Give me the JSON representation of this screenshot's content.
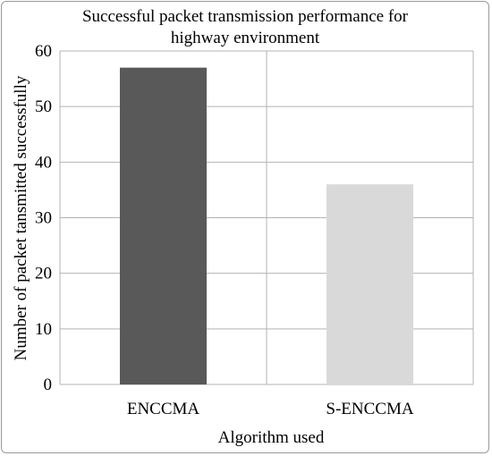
{
  "chart_data": {
    "type": "bar",
    "title_lines": [
      "Successful packet transmission performance for",
      "highway environment"
    ],
    "categories": [
      "ENCCMA",
      "S-ENCCMA"
    ],
    "values": [
      57,
      36
    ],
    "bar_colors": [
      "#595959",
      "#d9d9d9"
    ],
    "xlabel": "Algorithm used",
    "ylabel": "Number of packet tansmitted successfully",
    "ylim": [
      0,
      60
    ],
    "yticks": [
      0,
      10,
      20,
      30,
      40,
      50,
      60
    ],
    "grid": true,
    "legend": "none"
  }
}
